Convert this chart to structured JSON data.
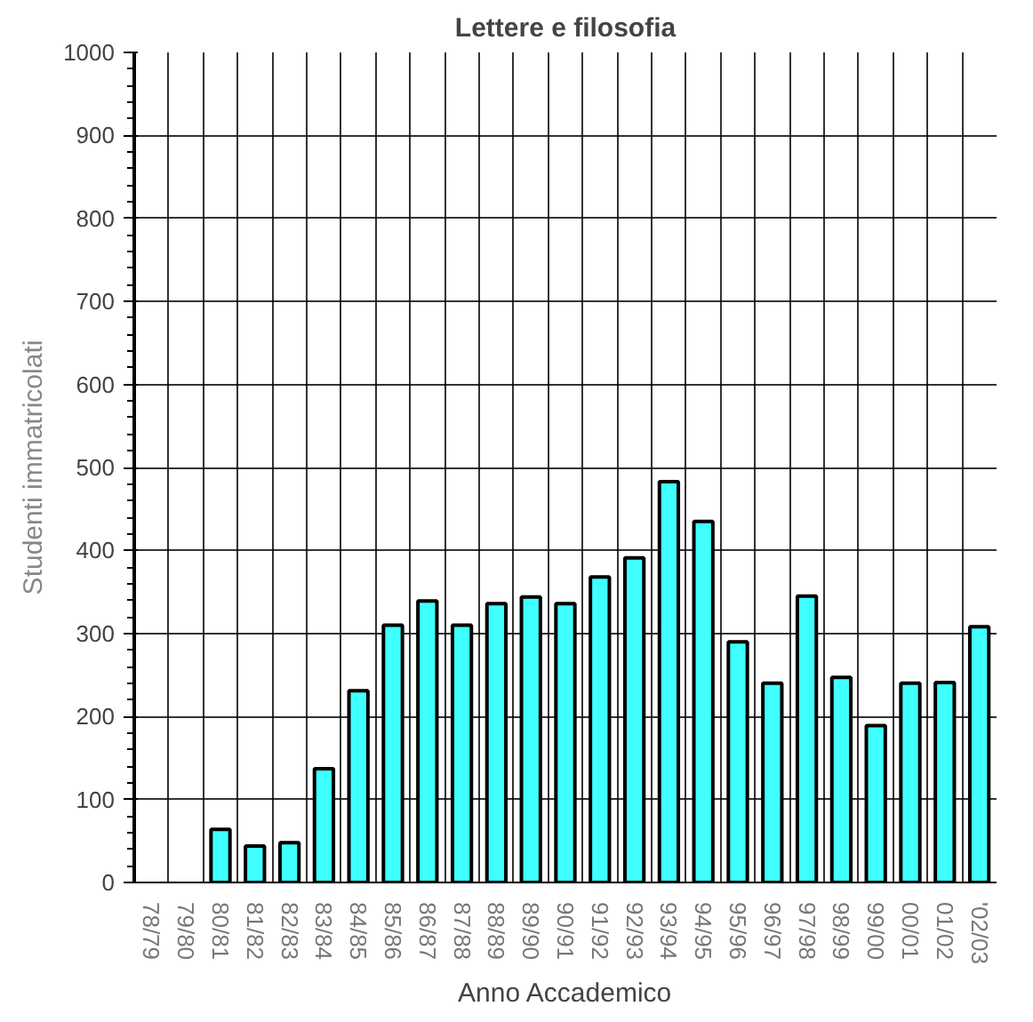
{
  "chart_data": {
    "type": "bar",
    "title": "Lettere e filosofia",
    "xlabel": "Anno Accademico",
    "ylabel": "Studenti immatricolati",
    "categories": [
      "78/79",
      "79/80",
      "80/81",
      "81/82",
      "82/83",
      "83/84",
      "84/85",
      "85/86",
      "86/87",
      "87/88",
      "88/89",
      "89/90",
      "90/91",
      "91/92",
      "92/93",
      "93/94",
      "94/95",
      "95/96",
      "96/97",
      "97/98",
      "98/99",
      "99/00",
      "00/01",
      "01/02",
      "'02/03"
    ],
    "values": [
      null,
      null,
      64,
      44,
      48,
      137,
      231,
      310,
      339,
      310,
      336,
      344,
      336,
      368,
      391,
      483,
      435,
      290,
      240,
      345,
      247,
      189,
      240,
      241,
      308
    ],
    "color": "#40ffff",
    "ylim": [
      0,
      1000
    ],
    "yticks": [
      0,
      100,
      200,
      300,
      400,
      500,
      600,
      700,
      800,
      900,
      1000
    ],
    "grid": true
  }
}
